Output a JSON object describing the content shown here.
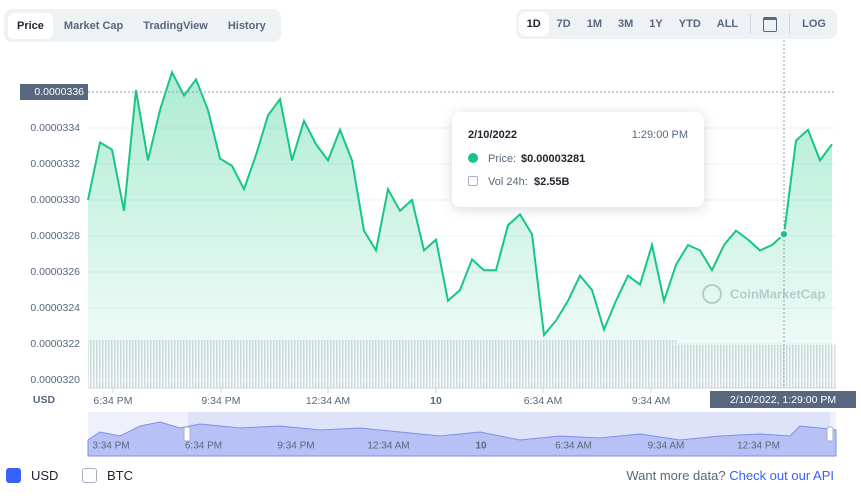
{
  "ui": {
    "tabs": [
      "Price",
      "Market Cap",
      "TradingView",
      "History"
    ],
    "ranges": [
      "1D",
      "7D",
      "1M",
      "3M",
      "1Y",
      "YTD",
      "ALL"
    ],
    "log": "LOG",
    "currencies": [
      "USD",
      "BTC"
    ],
    "more_data": "Want more data?",
    "api_link": "Check out our API",
    "watermark": "CoinMarketCap"
  },
  "tooltip": {
    "date": "2/10/2022",
    "time": "1:29:00 PM",
    "price_label": "Price:",
    "price": "$0.00003281",
    "vol_label": "Vol 24h:",
    "vol": "$2.55B"
  },
  "chart_data": {
    "type": "line",
    "color": "#16c784",
    "y_unit": "USD",
    "values": [
      3.3e-05,
      3.332e-05,
      3.328e-05,
      3.294e-05,
      3.361e-05,
      3.322e-05,
      3.35e-05,
      3.371e-05,
      3.358e-05,
      3.367e-05,
      3.35e-05,
      3.323e-05,
      3.319e-05,
      3.306e-05,
      3.325e-05,
      3.347e-05,
      3.356e-05,
      3.322e-05,
      3.344e-05,
      3.331e-05,
      3.322e-05,
      3.339e-05,
      3.322e-05,
      3.283e-05,
      3.272e-05,
      3.306e-05,
      3.294e-05,
      3.3e-05,
      3.272e-05,
      3.278e-05,
      3.244e-05,
      3.25e-05,
      3.267e-05,
      3.261e-05,
      3.261e-05,
      3.286e-05,
      3.292e-05,
      3.281e-05,
      3.225e-05,
      3.233e-05,
      3.244e-05,
      3.258e-05,
      3.25e-05,
      3.228e-05,
      3.244e-05,
      3.258e-05,
      3.253e-05,
      3.275e-05,
      3.244e-05,
      3.264e-05,
      3.275e-05,
      3.272e-05,
      3.261e-05,
      3.275e-05,
      3.283e-05,
      3.278e-05,
      3.272e-05,
      3.275e-05,
      3.281e-05,
      3.333e-05,
      3.339e-05,
      3.322e-05,
      3.331e-05
    ],
    "xlim": [
      0,
      62
    ],
    "xticks": [
      {
        "value": 2.08,
        "label": "6:34 PM"
      },
      {
        "value": 11.08,
        "label": "9:34 PM"
      },
      {
        "value": 20,
        "label": "12:34 AM"
      },
      {
        "value": 29,
        "label": "10"
      },
      {
        "value": 37.92,
        "label": "6:34 AM"
      },
      {
        "value": 46.92,
        "label": "9:34 AM"
      }
    ],
    "ylim": [
      3.2e-05,
      3.38e-05
    ],
    "yticks": [
      {
        "value": 3.2e-05,
        "label": "0.0000320"
      },
      3.22e-05,
      3.24e-05,
      3.26e-05,
      3.28e-05,
      {
        "value": 3.3e-05,
        "label": "0.0000330"
      },
      3.32e-05,
      3.34e-05
    ],
    "grid": true,
    "crosshair": {
      "y": 3.36e-05,
      "x": 58,
      "x_label": "2/10/2022, 1:29:00 PM"
    },
    "navigator_labels": [
      "3:34 PM",
      "6:34 PM",
      "9:34 PM",
      "12:34 AM",
      "10",
      "6:34 AM",
      "9:34 AM",
      "12:34 PM"
    ]
  }
}
